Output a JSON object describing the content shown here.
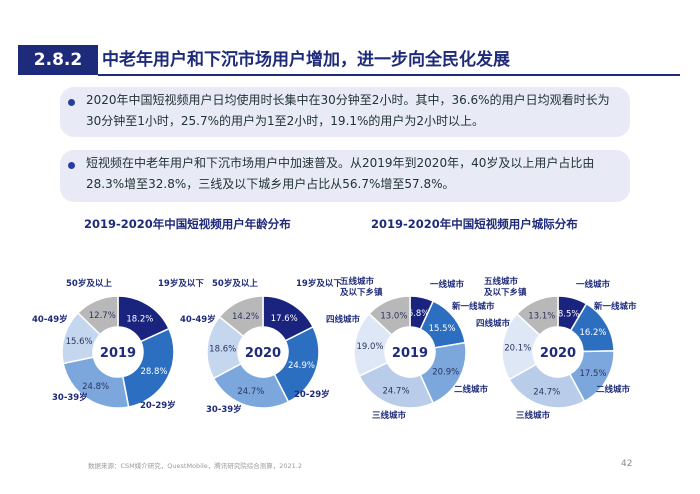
{
  "header": {
    "section": "2.8.2",
    "title": "中老年用户和下沉市场用户增加，进一步向全民化发展"
  },
  "bullets": [
    {
      "text_l1": "2020年中国短视频用户日均使用时长集中在30分钟至2小时。其中，36.6%的用户日均观看时长为",
      "text_l2": "30分钟至1小时，25.7%的用户为1至2小时，19.1%的用户为2小时以上。"
    },
    {
      "text_l1": "短视频在中老年用户和下沉市场用户中加速普及。从2019年到2020年，40岁及以上用户占比由",
      "text_l2": "28.3%增至32.8%，三线及以下城乡用户占比从56.7%增至57.8%。"
    }
  ],
  "chart_titles": {
    "age": "2019-2020年中国短视频用户年龄分布",
    "city": "2019-2020年中国短视频用户城际分布"
  },
  "chart_data": [
    {
      "type": "pie",
      "year_label": "2019",
      "categories": [
        "19岁及以下",
        "20-29岁",
        "30-39岁",
        "40-49岁",
        "50岁及以上"
      ],
      "values": [
        18.2,
        28.8,
        24.8,
        15.6,
        12.7
      ],
      "colors": [
        "#1a237e",
        "#2c6fc0",
        "#7ba7dc",
        "#c5d6ef",
        "#b8b8b8"
      ]
    },
    {
      "type": "pie",
      "year_label": "2020",
      "categories": [
        "19岁及以下",
        "20-29岁",
        "30-39岁",
        "40-49岁",
        "50岁及以上"
      ],
      "values": [
        17.6,
        24.9,
        24.7,
        18.6,
        14.2
      ],
      "colors": [
        "#1a237e",
        "#2c6fc0",
        "#7ba7dc",
        "#c5d6ef",
        "#b8b8b8"
      ]
    },
    {
      "type": "pie",
      "year_label": "2019",
      "categories": [
        "一线城市",
        "新一线城市",
        "二线城市",
        "三线城市",
        "四线城市",
        "五线城市及以下乡镇"
      ],
      "values": [
        6.8,
        15.5,
        20.9,
        24.7,
        19.0,
        13.0
      ],
      "colors": [
        "#1a237e",
        "#2c6fc0",
        "#7ba7dc",
        "#b9cdea",
        "#dde7f5",
        "#b8b8b8"
      ]
    },
    {
      "type": "pie",
      "year_label": "2020",
      "categories": [
        "一线城市",
        "新一线城市",
        "二线城市",
        "三线城市",
        "四线城市",
        "五线城市及以下乡镇"
      ],
      "values": [
        8.5,
        16.2,
        17.5,
        24.7,
        20.1,
        13.1
      ],
      "colors": [
        "#1a237e",
        "#2c6fc0",
        "#7ba7dc",
        "#b9cdea",
        "#dde7f5",
        "#b8b8b8"
      ]
    }
  ],
  "footer": {
    "source": "数据来源：CSM媒介研究，QuestMobile，腾讯研究院综合测算，2021.2",
    "page": "42"
  }
}
